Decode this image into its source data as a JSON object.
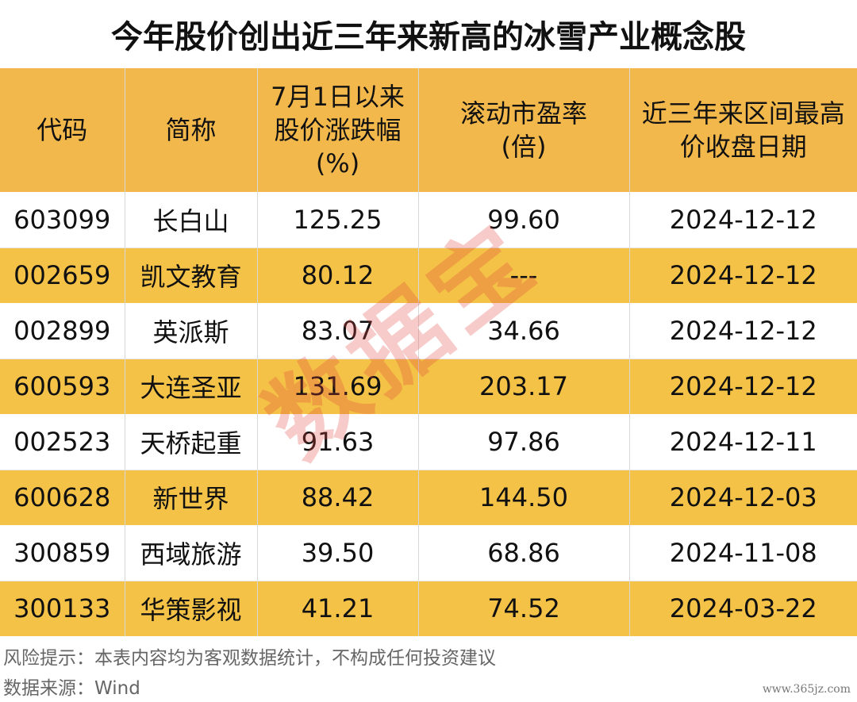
{
  "title": "今年股价创出近三年来新高的冰雪产业概念股",
  "headers": {
    "code": "代码",
    "name": "简称",
    "change_line1": "7月1日以来",
    "change_line2": "股价涨跌幅",
    "change_line3": "(%)",
    "pe_line1": "滚动市盈率",
    "pe_line2": "(倍)",
    "date_line1": "近三年来区间最高",
    "date_line2": "价收盘日期"
  },
  "rows": [
    {
      "code": "603099",
      "name": "长白山",
      "change": "125.25",
      "pe": "99.60",
      "date": "2024-12-12"
    },
    {
      "code": "002659",
      "name": "凯文教育",
      "change": "80.12",
      "pe": "---",
      "date": "2024-12-12"
    },
    {
      "code": "002899",
      "name": "英派斯",
      "change": "83.07",
      "pe": "34.66",
      "date": "2024-12-12"
    },
    {
      "code": "600593",
      "name": "大连圣亚",
      "change": "131.69",
      "pe": "203.17",
      "date": "2024-12-12"
    },
    {
      "code": "002523",
      "name": "天桥起重",
      "change": "91.63",
      "pe": "97.86",
      "date": "2024-12-11"
    },
    {
      "code": "600628",
      "name": "新世界",
      "change": "88.42",
      "pe": "144.50",
      "date": "2024-12-03"
    },
    {
      "code": "300859",
      "name": "西域旅游",
      "change": "39.50",
      "pe": "68.86",
      "date": "2024-11-08"
    },
    {
      "code": "300133",
      "name": "华策影视",
      "change": "41.21",
      "pe": "74.52",
      "date": "2024-03-22"
    }
  ],
  "footer": {
    "risk": "风险提示：本表内容均为客观数据统计，不构成任何投资建议",
    "source": "数据来源：Wind"
  },
  "watermark": "数据宝",
  "site_mark": "www.365jz.com",
  "colors": {
    "header_bg": "#f2b84b",
    "stripe_bg": "#f4c246",
    "watermark": "#e4463c"
  }
}
